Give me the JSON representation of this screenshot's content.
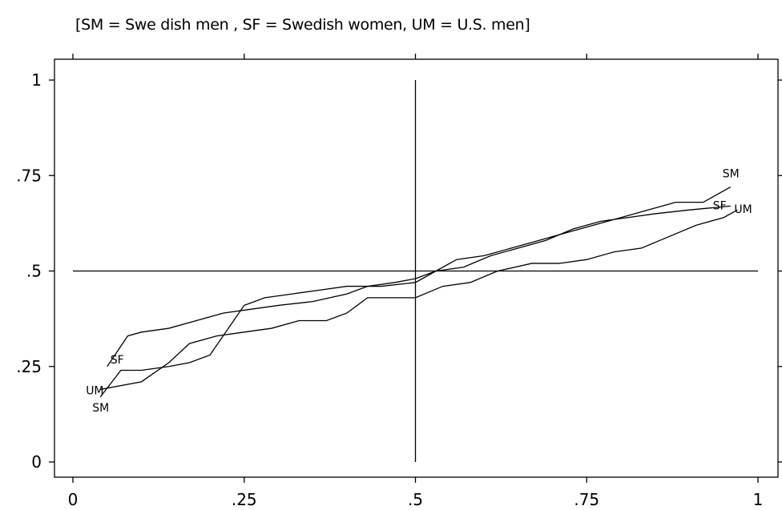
{
  "chart_data": {
    "type": "line",
    "title": "[SM = Swe dish men , SF = Swedish women, UM = U.S. men]",
    "xlabel": "",
    "ylabel": "",
    "xlim": [
      0,
      1
    ],
    "ylim": [
      0,
      1
    ],
    "x_ticks": [
      "0",
      ".25",
      ".5",
      ".75",
      "1"
    ],
    "y_ticks": [
      "0",
      ".25",
      ".5",
      ".75",
      "1"
    ],
    "x_tick_values": [
      0,
      0.25,
      0.5,
      0.75,
      1
    ],
    "y_tick_values": [
      0,
      0.25,
      0.5,
      0.75,
      1
    ],
    "reference_lines": {
      "vertical_x": 0.5,
      "horizontal_y": 0.5,
      "range": [
        0,
        1
      ]
    },
    "grid": false,
    "legend": "none",
    "series": [
      {
        "name": "SM",
        "start_label": "SM",
        "end_label": "SM",
        "x": [
          0.04,
          0.07,
          0.1,
          0.14,
          0.17,
          0.2,
          0.25,
          0.28,
          0.32,
          0.36,
          0.4,
          0.45,
          0.5,
          0.53,
          0.56,
          0.6,
          0.64,
          0.68,
          0.72,
          0.76,
          0.8,
          0.84,
          0.88,
          0.92,
          0.96
        ],
        "y": [
          0.17,
          0.24,
          0.24,
          0.25,
          0.26,
          0.28,
          0.41,
          0.43,
          0.44,
          0.45,
          0.46,
          0.46,
          0.47,
          0.5,
          0.53,
          0.54,
          0.56,
          0.58,
          0.6,
          0.62,
          0.64,
          0.66,
          0.68,
          0.68,
          0.72
        ]
      },
      {
        "name": "SF",
        "start_label": "SF",
        "end_label": "SF",
        "x": [
          0.05,
          0.08,
          0.1,
          0.14,
          0.18,
          0.22,
          0.26,
          0.3,
          0.35,
          0.4,
          0.43,
          0.47,
          0.5,
          0.53,
          0.57,
          0.61,
          0.65,
          0.69,
          0.73,
          0.77,
          0.81,
          0.85,
          0.9,
          0.96
        ],
        "y": [
          0.25,
          0.33,
          0.34,
          0.35,
          0.37,
          0.39,
          0.4,
          0.41,
          0.42,
          0.44,
          0.46,
          0.47,
          0.48,
          0.5,
          0.51,
          0.54,
          0.56,
          0.58,
          0.61,
          0.63,
          0.64,
          0.65,
          0.66,
          0.67
        ]
      },
      {
        "name": "UM",
        "start_label": "UM",
        "end_label": "UM",
        "x": [
          0.04,
          0.1,
          0.14,
          0.17,
          0.21,
          0.25,
          0.29,
          0.33,
          0.37,
          0.4,
          0.43,
          0.47,
          0.5,
          0.54,
          0.58,
          0.62,
          0.67,
          0.71,
          0.75,
          0.79,
          0.83,
          0.87,
          0.91,
          0.95,
          0.97
        ],
        "y": [
          0.19,
          0.21,
          0.26,
          0.31,
          0.33,
          0.34,
          0.35,
          0.37,
          0.37,
          0.39,
          0.43,
          0.43,
          0.43,
          0.46,
          0.47,
          0.5,
          0.52,
          0.52,
          0.53,
          0.55,
          0.56,
          0.59,
          0.62,
          0.64,
          0.66
        ]
      }
    ]
  }
}
